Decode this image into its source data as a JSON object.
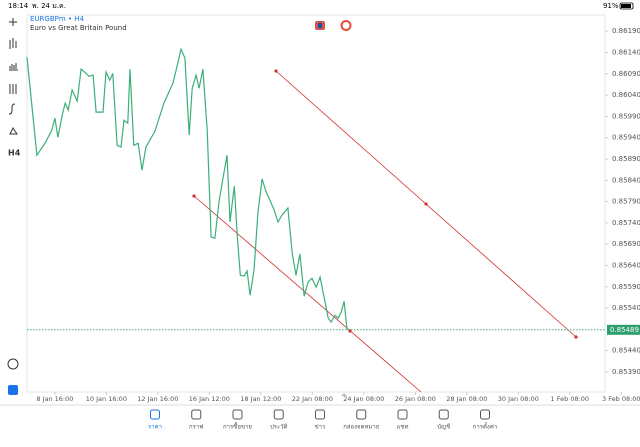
{
  "status_bar": {
    "time": "18:14",
    "date": "พ. 24 ม.ค.",
    "battery": "91%"
  },
  "chart_header": {
    "symbol": "EURGBPm • H4",
    "description": "Euro vs Great Britain Pound"
  },
  "left_toolbar": {
    "timeframe": "H4"
  },
  "chart_data": {
    "type": "line",
    "color": "#3dae7a",
    "x": [
      0,
      2.3,
      4.2,
      5.8,
      6.5,
      7.2,
      8.2,
      8.9,
      9.6,
      10.5,
      11.7,
      12.6,
      14.5,
      15.4,
      16.1,
      17.7,
      18.4,
      19.3,
      20.0,
      21.0,
      21.9,
      22.6,
      23.5,
      24.0,
      24.9,
      25.9,
      26.8,
      27.7,
      29.8,
      31.9,
      34.0,
      35.2,
      35.9,
      36.8,
      37.8,
      38.5,
      39.4,
      40.1,
      41.0,
      42.0,
      42.9,
      43.8,
      44.8,
      46.6,
      47.3,
      48.3,
      49.0,
      49.7,
      50.6,
      51.3,
      52.0,
      52.9,
      53.8,
      54.8,
      55.7,
      57.6,
      58.5,
      59.4,
      60.8,
      61.8,
      62.7,
      63.6,
      64.6,
      65.5,
      66.4,
      67.4,
      68.3,
      69.2,
      70.2,
      70.9,
      71.8,
      72.5,
      73.2,
      73.9,
      74.6
    ],
    "values": [
      0.86129,
      0.85899,
      0.85927,
      0.85958,
      0.85986,
      0.85941,
      0.85993,
      0.86021,
      0.86005,
      0.86052,
      0.86026,
      0.86101,
      0.86084,
      0.86087,
      0.86,
      0.86,
      0.86094,
      0.86075,
      0.86091,
      0.85922,
      0.85918,
      0.85981,
      0.85974,
      0.86101,
      0.85922,
      0.85927,
      0.85864,
      0.85918,
      0.85955,
      0.86021,
      0.86068,
      0.86117,
      0.86148,
      0.86127,
      0.85946,
      0.86056,
      0.86087,
      0.86056,
      0.86101,
      0.85958,
      0.85707,
      0.85704,
      0.85793,
      0.85899,
      0.85742,
      0.85826,
      0.85709,
      0.85617,
      0.85615,
      0.85627,
      0.8557,
      0.85629,
      0.85763,
      0.85843,
      0.85814,
      0.8577,
      0.85742,
      0.85758,
      0.85775,
      0.85669,
      0.85617,
      0.85667,
      0.85568,
      0.85601,
      0.8561,
      0.85589,
      0.85613,
      0.85568,
      0.85516,
      0.85507,
      0.85523,
      0.85516,
      0.8553,
      0.85556,
      0.85489
    ],
    "current_price": 0.85489,
    "current_price_color": "#2e9e6b",
    "xlim": [
      0,
      134.7
    ],
    "ylim": [
      0.85343,
      0.86228
    ],
    "yticks": [
      {
        "value": 0.8619,
        "label": "0.86190"
      },
      {
        "value": 0.8614,
        "label": "0.86140"
      },
      {
        "value": 0.8609,
        "label": "0.86090"
      },
      {
        "value": 0.8604,
        "label": "0.86040"
      },
      {
        "value": 0.8599,
        "label": "0.85990"
      },
      {
        "value": 0.8594,
        "label": "0.85940"
      },
      {
        "value": 0.8589,
        "label": "0.85890"
      },
      {
        "value": 0.8584,
        "label": "0.85840"
      },
      {
        "value": 0.8579,
        "label": "0.85790"
      },
      {
        "value": 0.8574,
        "label": "0.85740"
      },
      {
        "value": 0.8569,
        "label": "0.85690"
      },
      {
        "value": 0.8564,
        "label": "0.85640"
      },
      {
        "value": 0.8559,
        "label": "0.85590"
      },
      {
        "value": 0.8554,
        "label": "0.85540"
      },
      {
        "value": 0.8544,
        "label": "0.85440"
      },
      {
        "value": 0.8539,
        "label": "0.85390"
      }
    ],
    "xticks": [
      {
        "value": 6.5,
        "label": "8 Jan 16:00"
      },
      {
        "value": 18.5,
        "label": "10 Jan 16:00"
      },
      {
        "value": 30.5,
        "label": "12 Jan 16:00"
      },
      {
        "value": 42.5,
        "label": "16 Jan 12:00"
      },
      {
        "value": 54.5,
        "label": "18 Jan 12:00"
      },
      {
        "value": 66.5,
        "label": "22 Jan 08:00"
      },
      {
        "value": 78.5,
        "label": "24 Jan 08:00"
      },
      {
        "value": 90.5,
        "label": "26 Jan 08:00"
      },
      {
        "value": 102.5,
        "label": "28 Jan 08:00"
      },
      {
        "value": 114.5,
        "label": "30 Jan 08:00"
      },
      {
        "value": 126.5,
        "label": "1 Feb 08:00"
      },
      {
        "value": 138.5,
        "label": "3 Feb 08:00"
      }
    ]
  },
  "tab_bar": {
    "tabs": [
      "ราคา",
      "กราฟ",
      "การซื้อขาย",
      "ประวัติ",
      "ข่าว",
      "กล่องจดหมาย",
      "แชท",
      "บัญชี",
      "การตั้งค่า"
    ]
  }
}
